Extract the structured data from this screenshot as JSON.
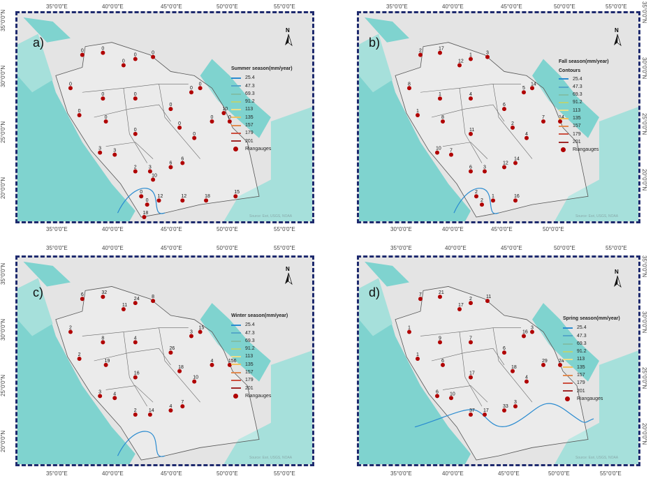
{
  "lon_ticks_top": {
    "a": [
      "35°0'0\"E",
      "40°0'0\"E",
      "45°0'0\"E",
      "50°0'0\"E",
      "55°0'0\"E"
    ],
    "b": [
      "35°0'0\"E",
      "40°0'0\"E",
      "45°0'0\"E",
      "50°0'0\"E",
      "55°0'0\"E"
    ],
    "c": [
      "35°0'0\"E",
      "40°0'0\"E",
      "45°0'0\"E",
      "50°0'0\"E",
      "55°0'0\"E"
    ],
    "d": [
      "35°0'0\"E",
      "40°0'0\"E",
      "45°0'0\"E",
      "50°0'0\"E",
      "55°0'0\"E"
    ]
  },
  "lon_ticks_bottom": {
    "a": [
      "35°0'0\"E",
      "40°0'0\"E",
      "45°0'0\"E",
      "50°0'0\"E",
      "55°0'0\"E"
    ],
    "b": [
      "30°0'0\"E",
      "40°0'0\"E",
      "45°0'0\"E",
      "50°0'0\"E"
    ],
    "c": [
      "35°0'0\"E",
      "40°0'0\"E",
      "45°0'0\"E",
      "50°0'0\"E",
      "55°0'0\"E"
    ],
    "d": [
      "35°0'0\"E",
      "40°0'0\"E",
      "45°0'0\"E",
      "50°0'0\"E",
      "55°0'0\"E"
    ]
  },
  "lat_ticks": [
    "35°0'0\"N",
    "30°0'0\"N",
    "25°0'0\"N",
    "20°0'0\"N"
  ],
  "contours": [
    {
      "value": "25.4",
      "color": "#2a8bd0"
    },
    {
      "value": "47.3",
      "color": "#55a8c8"
    },
    {
      "value": "69.3",
      "color": "#7fbfa8"
    },
    {
      "value": "91.2",
      "color": "#b5d47a"
    },
    {
      "value": "113",
      "color": "#e8e08a"
    },
    {
      "value": "135",
      "color": "#f0c060"
    },
    {
      "value": "157",
      "color": "#e08a50"
    },
    {
      "value": "179",
      "color": "#cc5040"
    },
    {
      "value": "201",
      "color": "#a02828"
    }
  ],
  "raingauges_label": "Riangauges",
  "north_label": "N",
  "credit": "Source: Esri, USGS, NOAA",
  "panels": [
    {
      "id": "a",
      "letter": "a)",
      "title": "Summer season(mm/year)",
      "subtitle": "",
      "values": [
        "0",
        "0",
        "0",
        "0",
        "0",
        "0",
        "0",
        "0",
        "0",
        "0",
        "0",
        "0",
        "0",
        "0",
        "0",
        "0",
        "0",
        "0",
        "3",
        "3",
        "2",
        "3",
        "6",
        "6",
        "0",
        "0",
        "12",
        "12",
        "18",
        "15",
        "18",
        "10",
        "10"
      ]
    },
    {
      "id": "b",
      "letter": "b)",
      "title": "Fall season(mm/year)",
      "subtitle": "Contours",
      "values": [
        "2",
        "17",
        "12",
        "1",
        "3",
        "8",
        "1",
        "4",
        "6",
        "5",
        "14",
        "1",
        "8",
        "11",
        "2",
        "4",
        "7",
        "14",
        "10",
        "7",
        "6",
        "3",
        "12",
        "14",
        "2",
        "2",
        "1",
        "16"
      ]
    },
    {
      "id": "c",
      "letter": "c)",
      "title": "Winter season(mm/year)",
      "subtitle": "",
      "values": [
        "6",
        "32",
        "11",
        "24",
        "8",
        "2",
        "8",
        "4",
        "26",
        "3",
        "15",
        "2",
        "19",
        "16",
        "18",
        "10",
        "4",
        "156",
        "3",
        "4",
        "2",
        "14",
        "4",
        "7"
      ]
    },
    {
      "id": "d",
      "letter": "d)",
      "title": "Spring season(mm/year)",
      "subtitle": "",
      "values": [
        "7",
        "21",
        "17",
        "2",
        "11",
        "1",
        "9",
        "7",
        "6",
        "16",
        "3",
        "1",
        "6",
        "17",
        "18",
        "4",
        "29",
        "24",
        "6",
        "10",
        "37",
        "17",
        "33",
        "3"
      ]
    }
  ]
}
